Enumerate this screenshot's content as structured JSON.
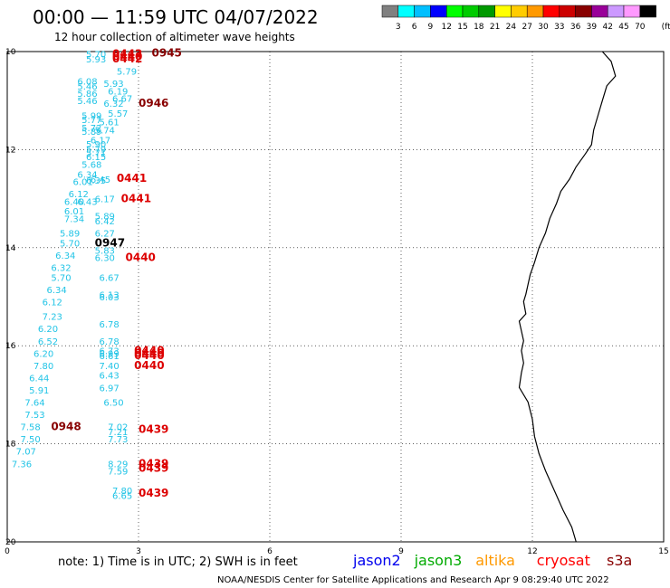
{
  "header": {
    "title": "00:00 — 11:59 UTC 04/07/2022",
    "subtitle": "12 hour collection of altimeter wave heights"
  },
  "color_scale": {
    "labels": [
      "3",
      "6",
      "9",
      "12",
      "15",
      "18",
      "21",
      "24",
      "27",
      "30",
      "33",
      "36",
      "39",
      "42",
      "45",
      "70"
    ],
    "unit": "(ft)",
    "colors": [
      "#808080",
      "#00ffff",
      "#00bfff",
      "#0000ff",
      "#00ff00",
      "#00cc00",
      "#009900",
      "#ffff00",
      "#ffcc00",
      "#ff9900",
      "#ff0000",
      "#cc0000",
      "#880000",
      "#990099",
      "#cc99ff",
      "#ff99ff",
      "#000000"
    ]
  },
  "axes": {
    "x_ticks": [
      "0",
      "3",
      "6",
      "9",
      "12",
      "15"
    ],
    "y_ticks": [
      "10",
      "12",
      "14",
      "16",
      "18",
      "20"
    ],
    "x_range": [
      0,
      15
    ],
    "y_range": [
      10,
      20
    ],
    "grid": true
  },
  "footer": {
    "note": "note: 1) Time is in UTC; 2) SWH is in feet",
    "credit": "NOAA/NESDIS Center for Satellite Applications and Research   Apr  9 08:29:40 UTC 2022",
    "satellites": [
      {
        "name": "jason2",
        "color": "#0000ee"
      },
      {
        "name": "jason3",
        "color": "#00aa00"
      },
      {
        "name": "altika",
        "color": "#ff9900"
      },
      {
        "name": "cryosat",
        "color": "#ff0000"
      },
      {
        "name": "s3a",
        "color": "#880000"
      }
    ]
  },
  "map_labels": [
    {
      "lon": 1.8,
      "lat": 10.05,
      "text": "5.70",
      "color": "#22c4e6"
    },
    {
      "lon": 1.8,
      "lat": 10.15,
      "text": "5.93",
      "color": "#22c4e6"
    },
    {
      "lon": 2.4,
      "lat": 10.05,
      "text": "0442",
      "color": "#dd0000"
    },
    {
      "lon": 2.4,
      "lat": 10.1,
      "text": "0440",
      "color": "#dd0000"
    },
    {
      "lon": 2.4,
      "lat": 10.15,
      "text": "0442",
      "color": "#dd0000"
    },
    {
      "lon": 3.3,
      "lat": 10.03,
      "text": "0945",
      "color": "#880000"
    },
    {
      "lon": 2.5,
      "lat": 10.4,
      "text": "5.79",
      "color": "#22c4e6"
    },
    {
      "lon": 1.6,
      "lat": 10.6,
      "text": "6.08",
      "color": "#22c4e6"
    },
    {
      "lon": 1.6,
      "lat": 10.7,
      "text": "5.46",
      "color": "#22c4e6"
    },
    {
      "lon": 2.2,
      "lat": 10.65,
      "text": "5.93",
      "color": "#22c4e6"
    },
    {
      "lon": 1.6,
      "lat": 10.85,
      "text": "5.86",
      "color": "#22c4e6"
    },
    {
      "lon": 2.3,
      "lat": 10.8,
      "text": "6.19",
      "color": "#22c4e6"
    },
    {
      "lon": 2.4,
      "lat": 10.95,
      "text": "6.67",
      "color": "#22c4e6"
    },
    {
      "lon": 1.6,
      "lat": 11.0,
      "text": "5.46",
      "color": "#22c4e6"
    },
    {
      "lon": 2.2,
      "lat": 11.05,
      "text": "6.32",
      "color": "#22c4e6"
    },
    {
      "lon": 3.0,
      "lat": 11.05,
      "text": "0946",
      "color": "#880000"
    },
    {
      "lon": 2.3,
      "lat": 11.25,
      "text": "5.57",
      "color": "#22c4e6"
    },
    {
      "lon": 1.7,
      "lat": 11.3,
      "text": "5.99",
      "color": "#22c4e6"
    },
    {
      "lon": 1.7,
      "lat": 11.38,
      "text": "5.77",
      "color": "#22c4e6"
    },
    {
      "lon": 2.1,
      "lat": 11.43,
      "text": "5.61",
      "color": "#22c4e6"
    },
    {
      "lon": 1.7,
      "lat": 11.55,
      "text": "5.72",
      "color": "#22c4e6"
    },
    {
      "lon": 1.7,
      "lat": 11.62,
      "text": "5.89",
      "color": "#22c4e6"
    },
    {
      "lon": 2.0,
      "lat": 11.6,
      "text": "5.74",
      "color": "#22c4e6"
    },
    {
      "lon": 1.9,
      "lat": 11.8,
      "text": "6.17",
      "color": "#22c4e6"
    },
    {
      "lon": 1.8,
      "lat": 11.88,
      "text": "5.90",
      "color": "#22c4e6"
    },
    {
      "lon": 1.8,
      "lat": 11.98,
      "text": "5.79",
      "color": "#22c4e6"
    },
    {
      "lon": 1.8,
      "lat": 12.06,
      "text": "5.71",
      "color": "#22c4e6"
    },
    {
      "lon": 1.8,
      "lat": 12.14,
      "text": "6.15",
      "color": "#22c4e6"
    },
    {
      "lon": 1.7,
      "lat": 12.3,
      "text": "5.68",
      "color": "#22c4e6"
    },
    {
      "lon": 1.6,
      "lat": 12.5,
      "text": "6.34",
      "color": "#22c4e6"
    },
    {
      "lon": 1.9,
      "lat": 12.6,
      "text": "6.45",
      "color": "#22c4e6"
    },
    {
      "lon": 1.5,
      "lat": 12.65,
      "text": "6.01",
      "color": "#22c4e6"
    },
    {
      "lon": 1.8,
      "lat": 12.62,
      "text": "6.35",
      "color": "#22c4e6"
    },
    {
      "lon": 2.5,
      "lat": 12.58,
      "text": "0441",
      "color": "#dd0000"
    },
    {
      "lon": 1.4,
      "lat": 12.9,
      "text": "6.12",
      "color": "#22c4e6"
    },
    {
      "lon": 1.3,
      "lat": 13.05,
      "text": "6.40",
      "color": "#22c4e6"
    },
    {
      "lon": 1.6,
      "lat": 13.05,
      "text": "6.43",
      "color": "#22c4e6"
    },
    {
      "lon": 2.0,
      "lat": 13.0,
      "text": "6.17",
      "color": "#22c4e6"
    },
    {
      "lon": 2.6,
      "lat": 13.0,
      "text": "0441",
      "color": "#dd0000"
    },
    {
      "lon": 1.3,
      "lat": 13.25,
      "text": "6.01",
      "color": "#22c4e6"
    },
    {
      "lon": 1.3,
      "lat": 13.4,
      "text": "7.34",
      "color": "#22c4e6"
    },
    {
      "lon": 2.0,
      "lat": 13.35,
      "text": "5.89",
      "color": "#22c4e6"
    },
    {
      "lon": 2.0,
      "lat": 13.45,
      "text": "6.42",
      "color": "#22c4e6"
    },
    {
      "lon": 1.2,
      "lat": 13.7,
      "text": "5.89",
      "color": "#22c4e6"
    },
    {
      "lon": 2.0,
      "lat": 13.7,
      "text": "6.27",
      "color": "#22c4e6"
    },
    {
      "lon": 1.2,
      "lat": 13.9,
      "text": "5.70",
      "color": "#22c4e6"
    },
    {
      "lon": 2.0,
      "lat": 13.9,
      "text": "0947",
      "color": "#000000"
    },
    {
      "lon": 2.0,
      "lat": 14.05,
      "text": "5.83",
      "color": "#22c4e6"
    },
    {
      "lon": 1.1,
      "lat": 14.15,
      "text": "6.34",
      "color": "#22c4e6"
    },
    {
      "lon": 2.0,
      "lat": 14.2,
      "text": "6.30",
      "color": "#22c4e6"
    },
    {
      "lon": 2.7,
      "lat": 14.2,
      "text": "0440",
      "color": "#dd0000"
    },
    {
      "lon": 1.0,
      "lat": 14.4,
      "text": "6.32",
      "color": "#22c4e6"
    },
    {
      "lon": 2.1,
      "lat": 14.6,
      "text": "6.67",
      "color": "#22c4e6"
    },
    {
      "lon": 1.0,
      "lat": 14.6,
      "text": "5.70",
      "color": "#22c4e6"
    },
    {
      "lon": 0.9,
      "lat": 14.85,
      "text": "6.34",
      "color": "#22c4e6"
    },
    {
      "lon": 2.1,
      "lat": 14.95,
      "text": "6.13",
      "color": "#22c4e6"
    },
    {
      "lon": 2.1,
      "lat": 15.0,
      "text": "6.03",
      "color": "#22c4e6"
    },
    {
      "lon": 0.8,
      "lat": 15.1,
      "text": "6.12",
      "color": "#22c4e6"
    },
    {
      "lon": 0.8,
      "lat": 15.4,
      "text": "7.23",
      "color": "#22c4e6"
    },
    {
      "lon": 2.1,
      "lat": 15.55,
      "text": "6.78",
      "color": "#22c4e6"
    },
    {
      "lon": 0.7,
      "lat": 15.65,
      "text": "6.20",
      "color": "#22c4e6"
    },
    {
      "lon": 0.7,
      "lat": 15.9,
      "text": "6.52",
      "color": "#22c4e6"
    },
    {
      "lon": 2.1,
      "lat": 15.9,
      "text": "6.78",
      "color": "#22c4e6"
    },
    {
      "lon": 2.1,
      "lat": 16.1,
      "text": "6.73",
      "color": "#22c4e6"
    },
    {
      "lon": 2.1,
      "lat": 16.15,
      "text": "6.99",
      "color": "#22c4e6"
    },
    {
      "lon": 2.1,
      "lat": 16.2,
      "text": "6.61",
      "color": "#22c4e6"
    },
    {
      "lon": 2.9,
      "lat": 16.1,
      "text": "0440",
      "color": "#dd0000"
    },
    {
      "lon": 2.9,
      "lat": 16.15,
      "text": "0440",
      "color": "#dd0000"
    },
    {
      "lon": 2.9,
      "lat": 16.2,
      "text": "0440",
      "color": "#dd0000"
    },
    {
      "lon": 0.6,
      "lat": 16.15,
      "text": "6.20",
      "color": "#22c4e6"
    },
    {
      "lon": 0.6,
      "lat": 16.4,
      "text": "7.80",
      "color": "#22c4e6"
    },
    {
      "lon": 2.1,
      "lat": 16.4,
      "text": "7.40",
      "color": "#22c4e6"
    },
    {
      "lon": 2.9,
      "lat": 16.4,
      "text": "0440",
      "color": "#dd0000"
    },
    {
      "lon": 2.1,
      "lat": 16.6,
      "text": "6.43",
      "color": "#22c4e6"
    },
    {
      "lon": 0.5,
      "lat": 16.65,
      "text": "6.44",
      "color": "#22c4e6"
    },
    {
      "lon": 2.1,
      "lat": 16.85,
      "text": "6.97",
      "color": "#22c4e6"
    },
    {
      "lon": 0.5,
      "lat": 16.9,
      "text": "5.91",
      "color": "#22c4e6"
    },
    {
      "lon": 0.4,
      "lat": 17.15,
      "text": "7.64",
      "color": "#22c4e6"
    },
    {
      "lon": 2.2,
      "lat": 17.15,
      "text": "6.50",
      "color": "#22c4e6"
    },
    {
      "lon": 0.4,
      "lat": 17.4,
      "text": "7.53",
      "color": "#22c4e6"
    },
    {
      "lon": 0.3,
      "lat": 17.65,
      "text": "7.58",
      "color": "#22c4e6"
    },
    {
      "lon": 1.0,
      "lat": 17.65,
      "text": "0948",
      "color": "#880000"
    },
    {
      "lon": 2.3,
      "lat": 17.65,
      "text": "7.02",
      "color": "#22c4e6"
    },
    {
      "lon": 2.3,
      "lat": 17.75,
      "text": "7.21",
      "color": "#22c4e6"
    },
    {
      "lon": 3.0,
      "lat": 17.7,
      "text": "0439",
      "color": "#dd0000"
    },
    {
      "lon": 0.3,
      "lat": 17.9,
      "text": "7.50",
      "color": "#22c4e6"
    },
    {
      "lon": 2.3,
      "lat": 17.9,
      "text": "7.73",
      "color": "#22c4e6"
    },
    {
      "lon": 0.2,
      "lat": 18.15,
      "text": "7.07",
      "color": "#22c4e6"
    },
    {
      "lon": 0.1,
      "lat": 18.4,
      "text": "7.36",
      "color": "#22c4e6"
    },
    {
      "lon": 2.3,
      "lat": 18.4,
      "text": "8.29",
      "color": "#22c4e6"
    },
    {
      "lon": 2.3,
      "lat": 18.55,
      "text": "7.59",
      "color": "#22c4e6"
    },
    {
      "lon": 3.0,
      "lat": 18.4,
      "text": "0439",
      "color": "#dd0000"
    },
    {
      "lon": 3.0,
      "lat": 18.5,
      "text": "0439",
      "color": "#dd0000"
    },
    {
      "lon": 2.4,
      "lat": 18.95,
      "text": "7.80",
      "color": "#22c4e6"
    },
    {
      "lon": 2.4,
      "lat": 19.05,
      "text": "6.65",
      "color": "#22c4e6"
    },
    {
      "lon": 3.0,
      "lat": 19.0,
      "text": "0439",
      "color": "#dd0000"
    }
  ],
  "coastline": [
    [
      13.6,
      10.0
    ],
    [
      13.8,
      10.2
    ],
    [
      13.9,
      10.5
    ],
    [
      13.7,
      10.7
    ],
    [
      13.6,
      11.0
    ],
    [
      13.5,
      11.3
    ],
    [
      13.4,
      11.6
    ],
    [
      13.35,
      11.9
    ],
    [
      13.2,
      12.1
    ],
    [
      13.0,
      12.35
    ],
    [
      12.85,
      12.6
    ],
    [
      12.65,
      12.85
    ],
    [
      12.55,
      13.1
    ],
    [
      12.4,
      13.4
    ],
    [
      12.3,
      13.7
    ],
    [
      12.15,
      14.0
    ],
    [
      12.05,
      14.3
    ],
    [
      11.95,
      14.55
    ],
    [
      11.9,
      14.75
    ],
    [
      11.85,
      14.95
    ],
    [
      11.8,
      15.1
    ],
    [
      11.85,
      15.35
    ],
    [
      11.7,
      15.5
    ],
    [
      11.75,
      15.7
    ],
    [
      11.8,
      15.9
    ],
    [
      11.75,
      16.1
    ],
    [
      11.8,
      16.35
    ],
    [
      11.75,
      16.55
    ],
    [
      11.7,
      16.85
    ],
    [
      11.9,
      17.15
    ],
    [
      12.0,
      17.5
    ],
    [
      12.05,
      17.85
    ],
    [
      12.15,
      18.2
    ],
    [
      12.3,
      18.55
    ],
    [
      12.5,
      18.95
    ],
    [
      12.7,
      19.35
    ],
    [
      12.9,
      19.7
    ],
    [
      13.0,
      20.0
    ]
  ]
}
